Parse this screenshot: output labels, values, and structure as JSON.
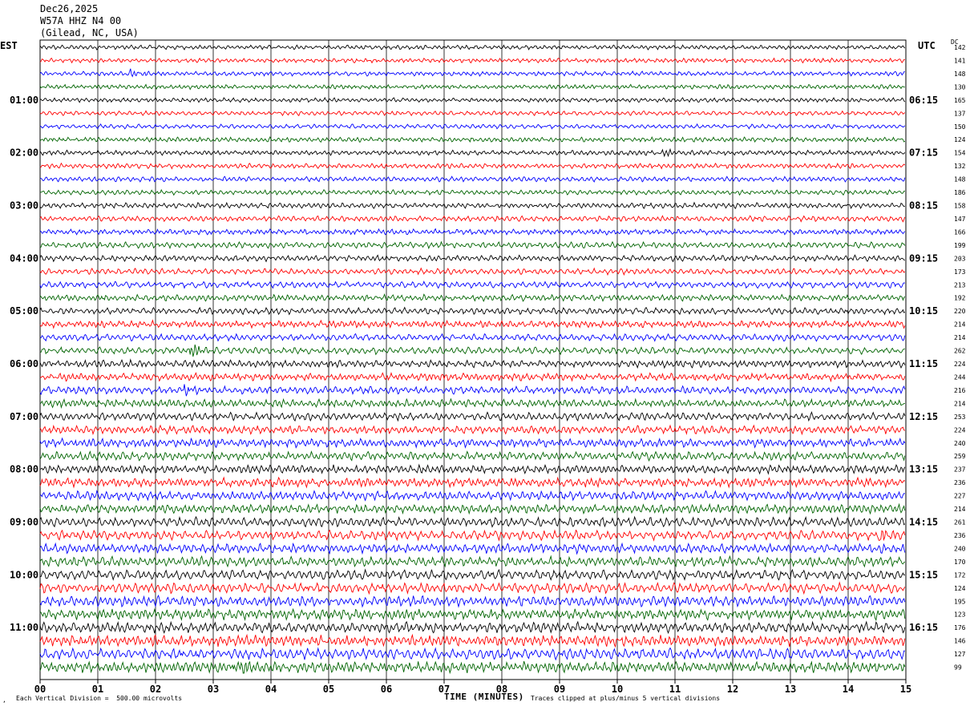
{
  "header": {
    "date": "Dec26,2025",
    "station": "W57A HHZ N4 00",
    "location": "(Gilead, NC, USA)"
  },
  "axes": {
    "left_tz": "EST",
    "right_tz": "UTC",
    "dc_label": "DC",
    "x_title": "TIME (MINUTES)"
  },
  "footer": {
    "scale_note": "Each Vertical Division =  500.00 microvolts",
    "clip_note": "Traces clipped at plus/minus 5 vertical divisions"
  },
  "colors": {
    "trace_cycle": [
      "#000000",
      "#ff0000",
      "#0000ff",
      "#006400"
    ],
    "gridline": "#000000"
  },
  "chart_data": {
    "type": "line",
    "subtype": "seismic helicorder",
    "x_range_minutes": [
      0,
      15
    ],
    "x_ticks": [
      "00",
      "01",
      "02",
      "03",
      "04",
      "05",
      "06",
      "07",
      "08",
      "09",
      "10",
      "11",
      "12",
      "13",
      "14",
      "15"
    ],
    "traces_per_hour": 4,
    "trace_count": 48,
    "left_hour_labels": [
      "01:00",
      "02:00",
      "03:00",
      "04:00",
      "05:00",
      "06:00",
      "07:00",
      "08:00",
      "09:00",
      "10:00",
      "11:00"
    ],
    "right_hour_labels": [
      "06:15",
      "07:15",
      "08:15",
      "09:15",
      "10:15",
      "11:15",
      "12:15",
      "13:15",
      "14:15",
      "15:15",
      "16:15"
    ],
    "dc_offsets": [
      142,
      141,
      148,
      130,
      165,
      137,
      150,
      124,
      154,
      132,
      148,
      186,
      158,
      147,
      166,
      199,
      203,
      173,
      213,
      192,
      220,
      214,
      214,
      262,
      224,
      244,
      216,
      214,
      253,
      224,
      240,
      259,
      237,
      236,
      227,
      214,
      261,
      236,
      240,
      170,
      172,
      124,
      195,
      123,
      176,
      146,
      127,
      99
    ],
    "trace_amplitude": [
      0.9,
      0.9,
      0.9,
      0.9,
      0.9,
      0.9,
      0.9,
      1.0,
      1.0,
      1.0,
      1.0,
      1.0,
      1.1,
      1.1,
      1.1,
      1.2,
      1.2,
      1.2,
      1.3,
      1.3,
      1.3,
      1.4,
      1.4,
      1.4,
      1.5,
      1.5,
      1.5,
      1.6,
      1.6,
      1.6,
      1.7,
      1.7,
      1.7,
      1.8,
      1.8,
      1.8,
      1.9,
      1.9,
      1.9,
      2.0,
      2.0,
      2.0,
      2.1,
      2.1,
      2.1,
      2.2,
      2.2,
      2.2
    ],
    "events": [
      {
        "trace": 23,
        "minute": 2.65,
        "strength": 3.5
      },
      {
        "trace": 26,
        "minute": 2.55,
        "strength": 2.0
      },
      {
        "trace": 37,
        "minute": 14.6,
        "strength": 2.5
      },
      {
        "trace": 47,
        "minute": 3.4,
        "strength": 3.0
      },
      {
        "trace": 2,
        "minute": 1.6,
        "strength": 1.5
      },
      {
        "trace": 8,
        "minute": 10.8,
        "strength": 1.5
      }
    ]
  }
}
